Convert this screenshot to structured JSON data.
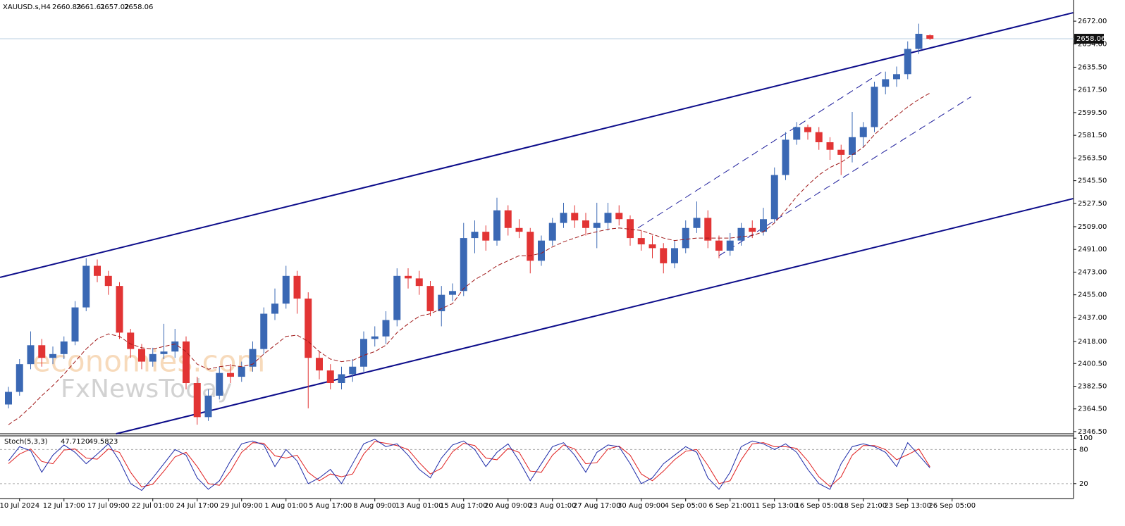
{
  "chart_data": {
    "type": "candlestick",
    "title": "XAUUSD.s,H4",
    "up_color": "#3a68b4",
    "down_color": "#e23434",
    "categories": [
      null,
      "10 Jul 2024",
      null,
      null,
      null,
      "12 Jul 17:00",
      null,
      null,
      null,
      "17 Jul 09:00",
      null,
      null,
      null,
      "22 Jul 01:00",
      null,
      null,
      null,
      "24 Jul 17:00",
      null,
      null,
      null,
      "29 Jul 09:00",
      null,
      null,
      null,
      "1 Aug 01:00",
      null,
      null,
      null,
      "5 Aug 17:00",
      null,
      null,
      null,
      "8 Aug 09:00",
      null,
      null,
      null,
      "13 Aug 01:00",
      null,
      null,
      null,
      "15 Aug 17:00",
      null,
      null,
      null,
      "20 Aug 09:00",
      null,
      null,
      null,
      "23 Aug 01:00",
      null,
      null,
      null,
      "27 Aug 17:00",
      null,
      null,
      null,
      "30 Aug 09:00",
      null,
      null,
      null,
      "4 Sep 05:00",
      null,
      null,
      null,
      "6 Sep 21:00",
      null,
      null,
      null,
      "11 Sep 13:00",
      null,
      null,
      null,
      "16 Sep 05:00",
      null,
      null,
      null,
      "18 Sep 21:00",
      null,
      null,
      null,
      "23 Sep 13:00",
      null,
      null,
      null,
      "26 Sep 05:00"
    ],
    "ohlc": [
      [
        2368,
        2382,
        2365,
        2378
      ],
      [
        2378,
        2404,
        2375,
        2400
      ],
      [
        2400,
        2426,
        2396,
        2415
      ],
      [
        2415,
        2420,
        2398,
        2405
      ],
      [
        2405,
        2414,
        2400,
        2408
      ],
      [
        2408,
        2422,
        2404,
        2418
      ],
      [
        2418,
        2450,
        2415,
        2445
      ],
      [
        2445,
        2484,
        2442,
        2478
      ],
      [
        2478,
        2483,
        2465,
        2470
      ],
      [
        2470,
        2474,
        2455,
        2462
      ],
      [
        2462,
        2465,
        2420,
        2425
      ],
      [
        2425,
        2428,
        2405,
        2412
      ],
      [
        2412,
        2416,
        2396,
        2402
      ],
      [
        2402,
        2413,
        2398,
        2408
      ],
      [
        2408,
        2432,
        2404,
        2410
      ],
      [
        2410,
        2428,
        2405,
        2418
      ],
      [
        2418,
        2422,
        2380,
        2385
      ],
      [
        2385,
        2390,
        2352,
        2358
      ],
      [
        2358,
        2380,
        2355,
        2375
      ],
      [
        2375,
        2398,
        2372,
        2393
      ],
      [
        2393,
        2400,
        2385,
        2390
      ],
      [
        2390,
        2402,
        2386,
        2398
      ],
      [
        2398,
        2418,
        2394,
        2412
      ],
      [
        2412,
        2445,
        2408,
        2440
      ],
      [
        2440,
        2460,
        2435,
        2448
      ],
      [
        2448,
        2478,
        2444,
        2470
      ],
      [
        2470,
        2474,
        2440,
        2452
      ],
      [
        2452,
        2457,
        2365,
        2405
      ],
      [
        2405,
        2410,
        2388,
        2395
      ],
      [
        2395,
        2400,
        2380,
        2385
      ],
      [
        2385,
        2398,
        2380,
        2392
      ],
      [
        2392,
        2404,
        2386,
        2398
      ],
      [
        2398,
        2426,
        2394,
        2420
      ],
      [
        2420,
        2430,
        2414,
        2422
      ],
      [
        2422,
        2442,
        2416,
        2435
      ],
      [
        2435,
        2476,
        2430,
        2470
      ],
      [
        2470,
        2476,
        2460,
        2468
      ],
      [
        2468,
        2474,
        2455,
        2462
      ],
      [
        2462,
        2466,
        2438,
        2442
      ],
      [
        2442,
        2462,
        2430,
        2455
      ],
      [
        2455,
        2464,
        2450,
        2458
      ],
      [
        2458,
        2512,
        2454,
        2500
      ],
      [
        2500,
        2514,
        2488,
        2505
      ],
      [
        2505,
        2510,
        2490,
        2498
      ],
      [
        2498,
        2532,
        2494,
        2522
      ],
      [
        2522,
        2526,
        2502,
        2508
      ],
      [
        2508,
        2515,
        2500,
        2505
      ],
      [
        2505,
        2508,
        2472,
        2482
      ],
      [
        2482,
        2502,
        2478,
        2498
      ],
      [
        2498,
        2516,
        2494,
        2512
      ],
      [
        2512,
        2528,
        2508,
        2520
      ],
      [
        2520,
        2526,
        2508,
        2514
      ],
      [
        2514,
        2520,
        2502,
        2508
      ],
      [
        2508,
        2528,
        2492,
        2512
      ],
      [
        2512,
        2528,
        2506,
        2520
      ],
      [
        2520,
        2526,
        2510,
        2515
      ],
      [
        2515,
        2518,
        2494,
        2500
      ],
      [
        2500,
        2506,
        2490,
        2495
      ],
      [
        2495,
        2502,
        2484,
        2492
      ],
      [
        2492,
        2496,
        2472,
        2480
      ],
      [
        2480,
        2498,
        2476,
        2492
      ],
      [
        2492,
        2514,
        2488,
        2508
      ],
      [
        2508,
        2529,
        2504,
        2516
      ],
      [
        2516,
        2522,
        2492,
        2498
      ],
      [
        2498,
        2502,
        2484,
        2490
      ],
      [
        2490,
        2504,
        2486,
        2498
      ],
      [
        2498,
        2512,
        2494,
        2508
      ],
      [
        2508,
        2514,
        2500,
        2505
      ],
      [
        2505,
        2524,
        2502,
        2515
      ],
      [
        2515,
        2556,
        2512,
        2550
      ],
      [
        2550,
        2584,
        2546,
        2578
      ],
      [
        2578,
        2592,
        2574,
        2588
      ],
      [
        2588,
        2590,
        2578,
        2584
      ],
      [
        2584,
        2588,
        2570,
        2576
      ],
      [
        2576,
        2580,
        2562,
        2570
      ],
      [
        2570,
        2574,
        2550,
        2566
      ],
      [
        2566,
        2600,
        2560,
        2580
      ],
      [
        2580,
        2592,
        2572,
        2588
      ],
      [
        2588,
        2624,
        2584,
        2620
      ],
      [
        2620,
        2632,
        2614,
        2626
      ],
      [
        2626,
        2636,
        2620,
        2630
      ],
      [
        2630,
        2656,
        2626,
        2650
      ],
      [
        2650,
        2670,
        2646,
        2662
      ],
      [
        2660.83,
        2661.61,
        2657.02,
        2658.06
      ],
      null,
      null
    ],
    "moving_average": {
      "color": "#a01818",
      "values": [
        2352,
        2358,
        2366,
        2375,
        2383,
        2392,
        2402,
        2412,
        2420,
        2424,
        2422,
        2416,
        2413,
        2412,
        2414,
        2416,
        2410,
        2400,
        2396,
        2398,
        2399,
        2398,
        2400,
        2408,
        2415,
        2422,
        2423,
        2418,
        2410,
        2404,
        2402,
        2403,
        2407,
        2410,
        2415,
        2425,
        2432,
        2438,
        2440,
        2444,
        2448,
        2460,
        2467,
        2472,
        2478,
        2482,
        2486,
        2486,
        2488,
        2493,
        2497,
        2500,
        2503,
        2505,
        2507,
        2508,
        2507,
        2506,
        2503,
        2500,
        2498,
        2499,
        2500,
        2500,
        2500,
        2500,
        2501,
        2502,
        2505,
        2512,
        2522,
        2533,
        2542,
        2550,
        2556,
        2560,
        2566,
        2572,
        2582,
        2590,
        2597,
        2604,
        2610,
        2615,
        null,
        null
      ]
    },
    "ylim": [
      2344.8,
      2688.8
    ],
    "yticks": [
      {
        "value": 2672,
        "label": "2672.00"
      },
      {
        "value": 2654,
        "label": "2654.00"
      },
      {
        "value": 2635.5,
        "label": "2635.50"
      },
      {
        "value": 2617.5,
        "label": "2617.50"
      },
      {
        "value": 2599.5,
        "label": "2599.50"
      },
      {
        "value": 2581.5,
        "label": "2581.50"
      },
      {
        "value": 2563.5,
        "label": "2563.50"
      },
      {
        "value": 2545.5,
        "label": "2545.50"
      },
      {
        "value": 2527.5,
        "label": "2527.50"
      },
      {
        "value": 2509,
        "label": "2509.00"
      },
      {
        "value": 2491,
        "label": "2491.00"
      },
      {
        "value": 2473,
        "label": "2473.00"
      },
      {
        "value": 2455,
        "label": "2455.00"
      },
      {
        "value": 2437,
        "label": "2437.00"
      },
      {
        "value": 2418,
        "label": "2418.00"
      },
      {
        "value": 2400.5,
        "label": "2400.50"
      },
      {
        "value": 2382.5,
        "label": "2382.50"
      },
      {
        "value": 2364.5,
        "label": "2364.50"
      },
      {
        "value": 2346.5,
        "label": "2346.50"
      }
    ],
    "trendlines": [
      {
        "color": "#0c0c8a",
        "dashed": false,
        "x": [
          -0.76,
          95.9
        ],
        "y": [
          2468.8,
          2678.7
        ]
      },
      {
        "color": "#0c0c8a",
        "dashed": false,
        "x": [
          9.7,
          95.9
        ],
        "y": [
          2344.8,
          2531.3
        ]
      },
      {
        "color": "#1a1a9a",
        "dashed": true,
        "x": [
          56.7,
          78.9
        ],
        "y": [
          2508,
          2633
        ]
      },
      {
        "color": "#1a1a9a",
        "dashed": true,
        "x": [
          64,
          86.7
        ],
        "y": [
          2486,
          2612
        ]
      }
    ],
    "watermarks": [
      "economies.com",
      "FxNewsToday"
    ],
    "stochastic": {
      "label": "Stoch(5,3,3)",
      "ylim": [
        -5,
        104
      ],
      "yticks": [
        100,
        80,
        20
      ],
      "levels": [
        80,
        20
      ],
      "series": [
        {
          "name": "main",
          "color": "#1c2aa8",
          "current_label": "47.7120",
          "values": [
            60,
            85,
            78,
            40,
            70,
            88,
            75,
            55,
            72,
            90,
            60,
            20,
            8,
            30,
            55,
            80,
            70,
            30,
            10,
            25,
            60,
            90,
            95,
            88,
            50,
            80,
            60,
            20,
            30,
            45,
            20,
            55,
            90,
            98,
            85,
            90,
            70,
            45,
            30,
            65,
            88,
            95,
            80,
            50,
            75,
            90,
            60,
            25,
            55,
            85,
            92,
            70,
            40,
            75,
            88,
            85,
            55,
            20,
            30,
            55,
            70,
            85,
            75,
            30,
            10,
            40,
            85,
            95,
            90,
            80,
            90,
            75,
            45,
            20,
            10,
            55,
            85,
            90,
            85,
            75,
            50,
            92,
            70,
            47.712,
            null,
            null
          ]
        },
        {
          "name": "signal",
          "color": "#e02020",
          "current_label": "49.5823",
          "values": [
            55,
            72,
            81,
            59,
            55,
            79,
            81,
            65,
            63,
            81,
            75,
            40,
            14,
            19,
            42,
            67,
            75,
            50,
            20,
            17,
            42,
            75,
            92,
            91,
            69,
            65,
            70,
            40,
            25,
            37,
            32,
            37,
            72,
            94,
            91,
            87,
            80,
            57,
            37,
            47,
            76,
            91,
            87,
            65,
            62,
            82,
            75,
            42,
            40,
            70,
            88,
            81,
            55,
            57,
            81,
            86,
            70,
            37,
            25,
            42,
            62,
            77,
            80,
            52,
            20,
            25,
            62,
            90,
            92,
            85,
            85,
            82,
            60,
            32,
            15,
            32,
            70,
            87,
            87,
            80,
            62,
            71,
            81,
            49.5823,
            null,
            null
          ]
        }
      ]
    }
  }
}
